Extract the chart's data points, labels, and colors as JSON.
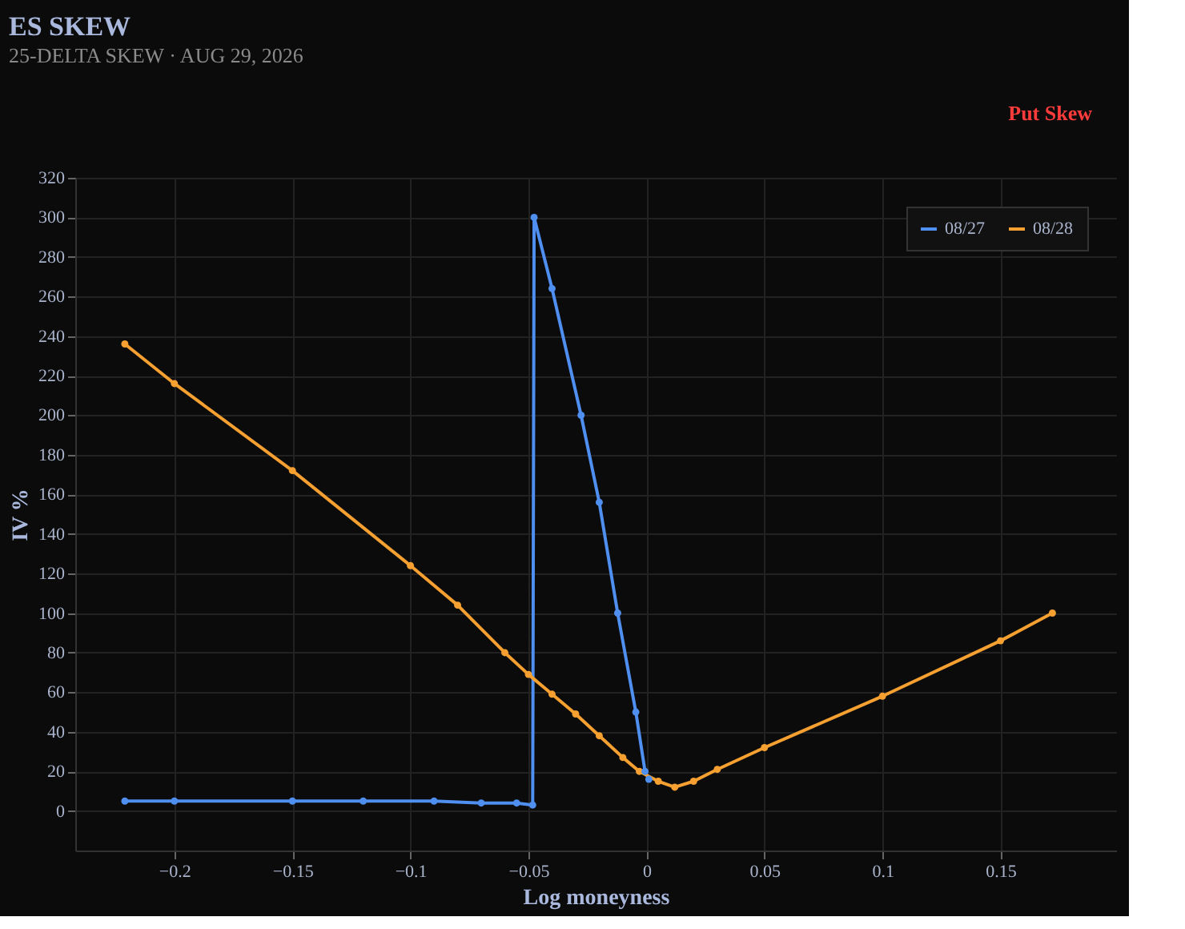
{
  "chart_data": {
    "type": "line",
    "title": "ES SKEW",
    "subtitle": "25-DELTA SKEW · AUG 29, 2026",
    "xlabel": "Log moneyness",
    "ylabel": "IV %",
    "annotations": [
      "Put Skew"
    ],
    "xlim": [
      -0.242,
      0.199
    ],
    "xticks": [
      -0.2,
      -0.15,
      -0.1,
      -0.05,
      0,
      0.05,
      0.1,
      0.15
    ],
    "ylim": [
      -20,
      320
    ],
    "yticks": [
      0,
      20,
      40,
      60,
      80,
      100,
      120,
      140,
      160,
      180,
      200,
      220,
      240,
      260,
      280,
      300,
      320
    ],
    "grid": true,
    "legend": "top right",
    "marker": "circle",
    "line_style": "solid",
    "series": [
      {
        "name": "08/27",
        "color": "#4f8ff0",
        "x": [
          -0.221,
          -0.2,
          -0.15,
          -0.12,
          -0.09,
          -0.07,
          -0.055,
          -0.0482,
          -0.0476,
          -0.04,
          -0.0277,
          -0.02,
          -0.0122,
          -0.0045,
          -0.0006,
          0.001
        ],
        "values": [
          5,
          5,
          5,
          5,
          5,
          4,
          4,
          3,
          300,
          264,
          200,
          156,
          100,
          50,
          20,
          16
        ]
      },
      {
        "name": "08/28",
        "color": "#f5a030",
        "x": [
          -0.221,
          -0.2,
          -0.15,
          -0.1,
          -0.08,
          -0.06,
          -0.05,
          -0.04,
          -0.03,
          -0.02,
          -0.01,
          -0.003,
          0.005,
          0.012,
          0.02,
          0.03,
          0.05,
          0.1,
          0.15,
          0.172
        ],
        "values": [
          236,
          216,
          172,
          124,
          104,
          80,
          69,
          59,
          49,
          38,
          27,
          20,
          15,
          12,
          15,
          21,
          32,
          58,
          86,
          100
        ]
      }
    ]
  }
}
